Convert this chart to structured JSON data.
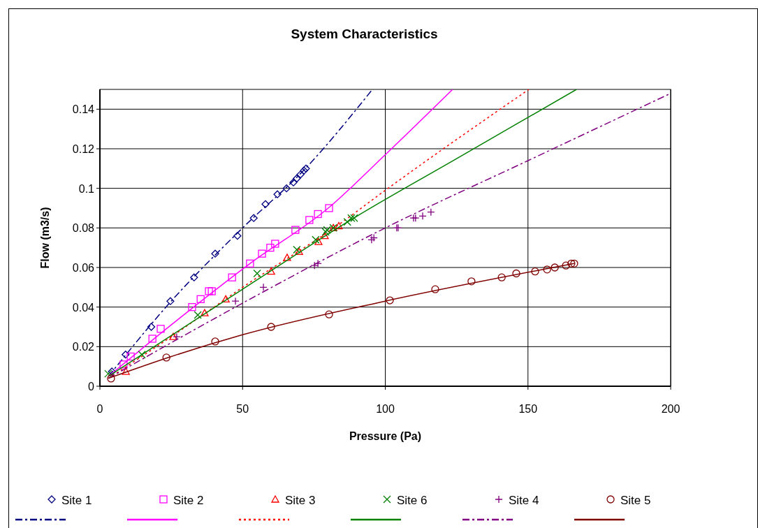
{
  "chart_data": {
    "type": "scatter",
    "title": "System Characteristics",
    "xlabel": "Pressure (Pa)",
    "ylabel": "Flow (m3/s)",
    "xlim": [
      0,
      200
    ],
    "xticks": [
      0,
      50,
      100,
      150,
      200
    ],
    "ylim": [
      0,
      0.15
    ],
    "yticks": [
      0,
      0.02,
      0.04,
      0.06,
      0.08,
      0.1,
      0.12,
      0.14
    ],
    "grid": true,
    "legend": "bottom",
    "series": [
      {
        "name": "Site 1",
        "marker": "diamond",
        "color": "#000080",
        "x": [
          4.2,
          9,
          18,
          24.7,
          33,
          40.4,
          48.2,
          53.9,
          58,
          62.2,
          65.4,
          67.8,
          69,
          70.3,
          71.5,
          72.2
        ],
        "values": [
          0.0074,
          0.016,
          0.03,
          0.043,
          0.055,
          0.067,
          0.076,
          0.085,
          0.092,
          0.097,
          0.1,
          0.103,
          0.105,
          0.107,
          0.109,
          0.11
        ]
      },
      {
        "type": "line",
        "line_style": "dashed",
        "color": "#000080",
        "x": [
          3,
          25,
          50,
          72,
          95.5
        ],
        "values": [
          0.005,
          0.043,
          0.08,
          0.11,
          0.15
        ]
      },
      {
        "name": "Site 2",
        "marker": "square",
        "color": "#ff00ff",
        "x": [
          8.3,
          10.8,
          18.4,
          21.3,
          32.3,
          35.3,
          38.2,
          39.2,
          46.3,
          52.6,
          56.8,
          59.7,
          61.4,
          68.5,
          73.4,
          76.4,
          80.3
        ],
        "values": [
          0.011,
          0.015,
          0.024,
          0.029,
          0.04,
          0.044,
          0.048,
          0.048,
          0.055,
          0.062,
          0.067,
          0.07,
          0.072,
          0.079,
          0.084,
          0.087,
          0.09
        ]
      },
      {
        "type": "line",
        "line_style": "solid",
        "color": "#ff00ff",
        "x": [
          3,
          25,
          52.6,
          80,
          100,
          123.6
        ],
        "values": [
          0.005,
          0.031,
          0.062,
          0.09,
          0.117,
          0.15
        ]
      },
      {
        "name": "Site 3",
        "marker": "triangle",
        "color": "#ff0000",
        "x": [
          9.1,
          25.7,
          36.7,
          44.1,
          60,
          65.6,
          69.8,
          76.6,
          78.8,
          81.8,
          83.7
        ],
        "values": [
          0.0074,
          0.025,
          0.037,
          0.044,
          0.058,
          0.065,
          0.068,
          0.073,
          0.076,
          0.08,
          0.081
        ]
      },
      {
        "type": "line",
        "line_style": "dotted",
        "color": "#ff0000",
        "x": [
          3,
          25,
          50,
          84,
          100,
          150.3
        ],
        "values": [
          0.004,
          0.025,
          0.05,
          0.082,
          0.099,
          0.15
        ]
      },
      {
        "name": "Site 6",
        "marker": "x",
        "color": "#008000",
        "x": [
          2.9,
          14.7,
          34.3,
          55.1,
          69,
          75.6,
          79.1,
          79.6,
          81.8,
          86.7,
          88.1,
          89.1
        ],
        "values": [
          0.0063,
          0.016,
          0.036,
          0.057,
          0.069,
          0.074,
          0.078,
          0.079,
          0.08,
          0.083,
          0.085,
          0.085
        ]
      },
      {
        "type": "line",
        "line_style": "solid",
        "color": "#008000",
        "x": [
          3,
          50,
          89,
          125,
          167
        ],
        "values": [
          0.005,
          0.049,
          0.085,
          0.115,
          0.15
        ]
      },
      {
        "name": "Site 4",
        "marker": "cross",
        "color": "#800080",
        "x": [
          26.9,
          47.5,
          57.3,
          75.2,
          76.4,
          95.2,
          96,
          104,
          104.5,
          109.9,
          110.6,
          113.1,
          116
        ],
        "values": [
          0.025,
          0.043,
          0.05,
          0.061,
          0.062,
          0.074,
          0.075,
          0.08,
          0.08,
          0.085,
          0.085,
          0.086,
          0.088
        ]
      },
      {
        "type": "line",
        "line_style": "dashed",
        "color": "#800080",
        "x": [
          3,
          50,
          100,
          150,
          200
        ],
        "values": [
          0.004,
          0.042,
          0.08,
          0.114,
          0.148
        ]
      },
      {
        "name": "Site 5",
        "marker": "circle",
        "color": "#800000",
        "x": [
          3.9,
          23.3,
          40.4,
          60,
          80.3,
          101.6,
          117.5,
          130.2,
          140.8,
          145.9,
          152.5,
          156.7,
          159.4,
          163.3,
          165.2,
          166.2
        ],
        "values": [
          0.0039,
          0.0145,
          0.0226,
          0.03,
          0.0363,
          0.0434,
          0.049,
          0.053,
          0.055,
          0.057,
          0.058,
          0.059,
          0.06,
          0.061,
          0.062,
          0.062
        ]
      },
      {
        "type": "line",
        "line_style": "solid",
        "color": "#800000",
        "x": [
          3,
          25,
          50,
          100,
          166.2
        ],
        "values": [
          0.004,
          0.015,
          0.026,
          0.043,
          0.062
        ]
      }
    ]
  }
}
